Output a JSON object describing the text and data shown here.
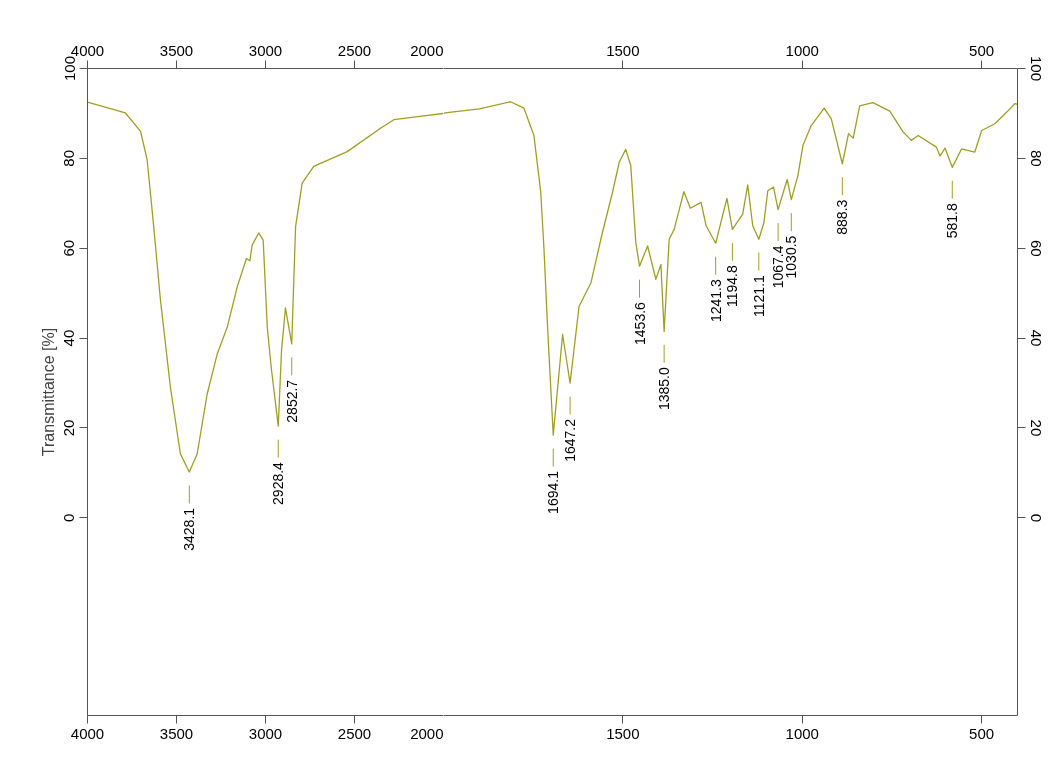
{
  "chart_data": [
    {
      "type": "line",
      "ylabel": "Transmittance [%]",
      "xlim": [
        4000,
        2000
      ],
      "xticks": [
        4000,
        3500,
        3000,
        2500,
        2000
      ],
      "x2lim": [
        4000,
        2000
      ],
      "x2ticks": [
        4000,
        3500,
        3000,
        2500,
        2000
      ],
      "ylim": [
        -44,
        100
      ],
      "yticks": [
        0,
        20,
        40,
        60,
        80,
        100
      ],
      "grid": false,
      "series": [
        {
          "color": "#a0a020",
          "x": [
            4000,
            3787,
            3702,
            3665,
            3628,
            3590,
            3534,
            3478,
            3428.1,
            3384,
            3328,
            3271,
            3215,
            3159,
            3107,
            3088,
            3075,
            3038,
            3013,
            2990,
            2968,
            2928.4,
            2910,
            2888,
            2852.7,
            2831,
            2794,
            2729,
            2541,
            2354,
            2279,
            2100,
            2000
          ],
          "values": [
            92.5,
            90.1,
            86.0,
            79.7,
            64.8,
            48.4,
            29.0,
            14.2,
            10.2,
            14.2,
            27.5,
            36.5,
            42.4,
            51.4,
            57.7,
            57.2,
            60.7,
            63.4,
            61.8,
            42.4,
            33.5,
            20.4,
            37.2,
            46.7,
            38.7,
            64.8,
            74.5,
            78.2,
            81.5,
            86.7,
            88.6,
            89.5,
            90.0
          ]
        }
      ],
      "annotations": [
        {
          "text": "3428.1",
          "x": 3428.1,
          "y": 10.2
        },
        {
          "text": "2928.4",
          "x": 2928.4,
          "y": 20.4
        },
        {
          "text": "2852.7",
          "x": 2852.7,
          "y": 38.7
        }
      ]
    },
    {
      "type": "line",
      "xlim": [
        2000,
        400
      ],
      "xticks": [
        1500,
        1000,
        500
      ],
      "x2lim": [
        2000,
        400
      ],
      "x2ticks": [
        1500,
        1000,
        500
      ],
      "ylim": [
        -44,
        100
      ],
      "yticks": [
        0,
        20,
        40,
        60,
        80,
        100
      ],
      "grid": false,
      "series": [
        {
          "color": "#a0a020",
          "x": [
            2000,
            1990,
            1900,
            1813,
            1776,
            1748,
            1729,
            1720,
            1710,
            1694.1,
            1668,
            1647.2,
            1622,
            1589,
            1557,
            1529,
            1510,
            1492,
            1478,
            1464,
            1453.6,
            1431,
            1408,
            1394,
            1385.0,
            1371,
            1357,
            1330,
            1312,
            1282,
            1268,
            1241.3,
            1210,
            1194.8,
            1166,
            1152,
            1138,
            1121.1,
            1107,
            1096,
            1080,
            1067.4,
            1042,
            1030.5,
            1012,
            998,
            975,
            939,
            919,
            888.3,
            871,
            858,
            840,
            803,
            756,
            719,
            696,
            677,
            626,
            616,
            602,
            581.8,
            556,
            519,
            500,
            463,
            430,
            407,
            400
          ],
          "values": [
            90.0,
            90.2,
            91.0,
            92.6,
            91.2,
            85.1,
            72.5,
            60.0,
            42.6,
            18.4,
            40.8,
            30.0,
            47.1,
            52.3,
            63.5,
            72.4,
            79.2,
            82.0,
            78.4,
            61.3,
            56.0,
            60.5,
            53.1,
            56.4,
            41.5,
            62.0,
            64.2,
            72.6,
            68.9,
            70.2,
            65.0,
            61.1,
            71.1,
            64.2,
            67.6,
            74.1,
            65.0,
            62.0,
            65.6,
            72.8,
            73.6,
            68.6,
            75.3,
            70.8,
            76.2,
            82.9,
            87.3,
            91.2,
            88.8,
            78.8,
            85.5,
            84.5,
            91.7,
            92.4,
            90.5,
            85.9,
            84.0,
            85.1,
            82.5,
            80.5,
            82.3,
            78.0,
            82.1,
            81.4,
            86.2,
            87.7,
            90.3,
            92.2,
            92.0
          ]
        }
      ],
      "annotations": [
        {
          "text": "1694.1",
          "x": 1694.1,
          "y": 18.4
        },
        {
          "text": "1647.2",
          "x": 1647.2,
          "y": 30.0
        },
        {
          "text": "1453.6",
          "x": 1453.6,
          "y": 56.0
        },
        {
          "text": "1385.0",
          "x": 1385.0,
          "y": 41.5
        },
        {
          "text": "1241.3",
          "x": 1241.3,
          "y": 61.1
        },
        {
          "text": "1194.8",
          "x": 1194.8,
          "y": 64.2
        },
        {
          "text": "1121.1",
          "x": 1121.1,
          "y": 62.0
        },
        {
          "text": "1067.4",
          "x": 1067.4,
          "y": 68.6
        },
        {
          "text": "1030.5",
          "x": 1030.5,
          "y": 70.8
        },
        {
          "text": "888.3",
          "x": 888.3,
          "y": 78.8
        },
        {
          "text": "581.8",
          "x": 581.8,
          "y": 78.0
        }
      ]
    }
  ]
}
